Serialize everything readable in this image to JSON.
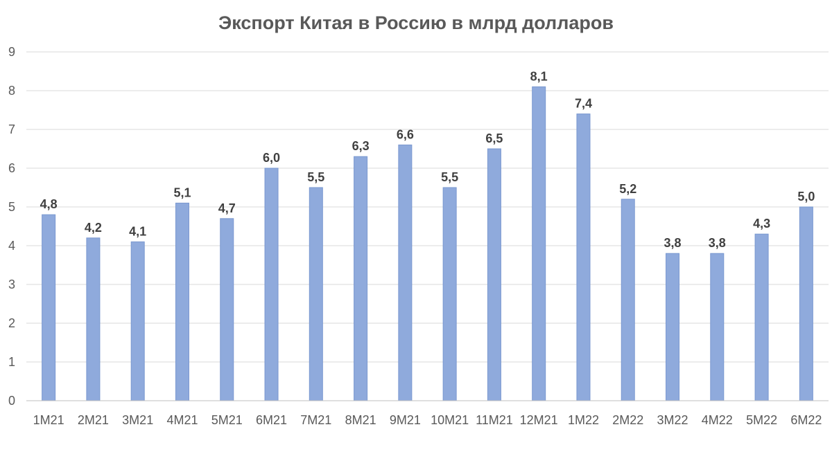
{
  "chart_data": {
    "type": "bar",
    "title": "Экспорт Китая в Россию в млрд долларов",
    "categories": [
      "1M21",
      "2M21",
      "3M21",
      "4M21",
      "5M21",
      "6M21",
      "7M21",
      "8M21",
      "9M21",
      "10M21",
      "11M21",
      "12M21",
      "1M22",
      "2M22",
      "3M22",
      "4M22",
      "5M22",
      "6M22"
    ],
    "values": [
      4.8,
      4.2,
      4.1,
      5.1,
      4.7,
      6.0,
      5.5,
      6.3,
      6.6,
      5.5,
      6.5,
      8.1,
      7.4,
      5.2,
      3.8,
      3.8,
      4.3,
      5.0
    ],
    "data_labels": [
      "4,8",
      "4,2",
      "4,1",
      "5,1",
      "4,7",
      "6,0",
      "5,5",
      "6,3",
      "6,6",
      "5,5",
      "6,5",
      "8,1",
      "7,4",
      "5,2",
      "3,8",
      "3,8",
      "4,3",
      "5,0"
    ],
    "ylim": [
      0,
      9
    ],
    "yticks": [
      "0",
      "1",
      "2",
      "3",
      "4",
      "5",
      "6",
      "7",
      "8",
      "9"
    ],
    "grid": true,
    "xlabel": "",
    "ylabel": "",
    "colors": {
      "bar_fill": "#8faadc",
      "bar_stroke": "#7a98d0"
    }
  }
}
